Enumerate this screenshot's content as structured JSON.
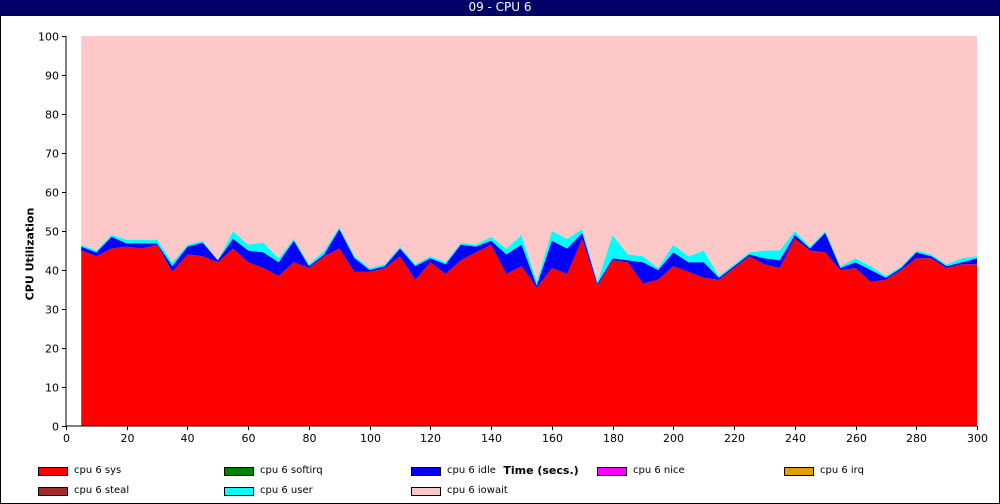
{
  "window": {
    "title": "09 - CPU 6"
  },
  "chart_data": {
    "type": "area",
    "stacked": true,
    "xlabel": "Time (secs.)",
    "ylabel": "CPU Utilization",
    "xlim": [
      0,
      300
    ],
    "ylim": [
      0,
      100
    ],
    "xticks": [
      0,
      20,
      40,
      60,
      80,
      100,
      120,
      140,
      160,
      180,
      200,
      220,
      240,
      260,
      280,
      300
    ],
    "yticks": [
      0,
      10,
      20,
      30,
      40,
      50,
      60,
      70,
      80,
      90,
      100
    ],
    "grid": false,
    "legend_position": "bottom",
    "x": [
      5,
      10,
      15,
      20,
      25,
      30,
      35,
      40,
      45,
      50,
      55,
      60,
      65,
      70,
      75,
      80,
      85,
      90,
      95,
      100,
      105,
      110,
      115,
      120,
      125,
      130,
      135,
      140,
      145,
      150,
      155,
      160,
      165,
      170,
      175,
      180,
      185,
      190,
      195,
      200,
      205,
      210,
      215,
      220,
      225,
      230,
      235,
      240,
      245,
      250,
      255,
      260,
      265,
      270,
      275,
      280,
      285,
      290,
      295,
      300
    ],
    "series": [
      {
        "name": "cpu 6 sys",
        "color": "#ff0000",
        "values": [
          45,
          43.5,
          45.5,
          46,
          45.5,
          46.5,
          39.5,
          44,
          43.5,
          42,
          45.5,
          42,
          40.5,
          38.5,
          42,
          40.5,
          43.5,
          45.5,
          39.5,
          39.5,
          40.5,
          43.5,
          37.5,
          42,
          39,
          42.5,
          44.5,
          46.5,
          39,
          41,
          35.5,
          40.5,
          39,
          48,
          36,
          42.5,
          42,
          36.5,
          37.5,
          41,
          39.5,
          38,
          37.5,
          40.5,
          43.5,
          41.5,
          40.5,
          48,
          45,
          44.5,
          40,
          40.5,
          37,
          37.5,
          40,
          43,
          43,
          40.5,
          41.5,
          41.5
        ]
      },
      {
        "name": "cpu 6 softirq",
        "color": "#008000",
        "values": [
          0,
          0,
          0,
          0,
          0,
          0,
          0,
          0,
          0,
          0,
          0,
          0,
          0,
          0,
          0,
          0,
          0,
          0,
          0,
          0,
          0,
          0,
          0,
          0,
          0,
          0,
          0,
          0,
          0,
          0,
          0,
          0,
          0,
          0,
          0,
          0,
          0,
          0,
          0,
          0,
          0,
          0,
          0,
          0,
          0,
          0,
          0,
          0,
          0,
          0,
          0,
          0,
          0,
          0,
          0,
          0,
          0,
          0,
          0,
          0
        ]
      },
      {
        "name": "cpu 6 idle",
        "color": "#0000ff",
        "values": [
          1,
          1,
          3,
          0.8,
          1.3,
          0.3,
          1.5,
          2,
          3.5,
          0.5,
          2.5,
          3,
          4,
          3.5,
          5.5,
          0.5,
          0.5,
          5,
          3.5,
          0.5,
          0.5,
          2,
          3.5,
          1,
          2.5,
          4,
          1.5,
          1,
          5,
          5.5,
          0.5,
          7,
          6.5,
          1.5,
          0.5,
          0.5,
          0.5,
          5.5,
          2.5,
          3.5,
          2.5,
          4,
          0.5,
          0.5,
          0.5,
          1.5,
          2,
          1,
          0.5,
          5,
          0.5,
          1.5,
          3,
          0.5,
          0.5,
          1.5,
          0.5,
          0.5,
          0.5,
          1.5
        ]
      },
      {
        "name": "cpu 6 nice",
        "color": "#ff00ff",
        "values": [
          0,
          0,
          0,
          0,
          0,
          0,
          0,
          0,
          0,
          0,
          0,
          0,
          0,
          0,
          0,
          0,
          0,
          0,
          0,
          0,
          0,
          0,
          0,
          0,
          0,
          0,
          0,
          0,
          0,
          0,
          0,
          0,
          0,
          0,
          0,
          0,
          0,
          0,
          0,
          0,
          0,
          0,
          0,
          0,
          0,
          0,
          0,
          0,
          0,
          0,
          0,
          0,
          0,
          0,
          0,
          0,
          0,
          0,
          0,
          0
        ]
      },
      {
        "name": "cpu 6 irq",
        "color": "#e0a000",
        "values": [
          0,
          0,
          0,
          0,
          0,
          0,
          0,
          0,
          0,
          0,
          0,
          0,
          0,
          0,
          0,
          0,
          0,
          0,
          0,
          0,
          0,
          0,
          0,
          0,
          0,
          0,
          0,
          0,
          0,
          0,
          0,
          0,
          0,
          0,
          0,
          0,
          0,
          0,
          0,
          0,
          0,
          0,
          0,
          0,
          0,
          0,
          0,
          0,
          0,
          0,
          0,
          0,
          0,
          0,
          0,
          0,
          0,
          0,
          0,
          0
        ]
      },
      {
        "name": "cpu 6 steal",
        "color": "#a52a2a",
        "values": [
          0,
          0,
          0,
          0,
          0,
          0,
          0,
          0,
          0,
          0,
          0,
          0,
          0,
          0,
          0,
          0,
          0,
          0,
          0,
          0,
          0,
          0,
          0,
          0,
          0,
          0,
          0,
          0,
          0,
          0,
          0,
          0,
          0,
          0,
          0,
          0,
          0,
          0,
          0,
          0,
          0,
          0,
          0,
          0,
          0,
          0,
          0,
          0,
          0,
          0,
          0,
          0,
          0,
          0,
          0,
          0,
          0,
          0,
          0,
          0
        ]
      },
      {
        "name": "cpu 6 user",
        "color": "#00ffff",
        "values": [
          0.5,
          0.5,
          0.5,
          1,
          1,
          1,
          1,
          0.5,
          0.5,
          0,
          2,
          1.5,
          2.5,
          1,
          0.5,
          0.5,
          1,
          0.5,
          0.5,
          0.5,
          0.5,
          0.5,
          0.5,
          0.5,
          0.5,
          0.5,
          0.5,
          1,
          1.5,
          2.5,
          1,
          2.5,
          2.5,
          1,
          0.5,
          6,
          1.5,
          1.5,
          0.5,
          2,
          1.5,
          3,
          0.5,
          0.5,
          0.5,
          2,
          2.5,
          1,
          0.5,
          0.5,
          0.5,
          1,
          1,
          0.5,
          0.5,
          0.5,
          0.5,
          0.5,
          1,
          0.5
        ]
      },
      {
        "name": "cpu 6 iowait",
        "color": "#ffc8c8",
        "values": [
          53.5,
          55,
          51,
          52.2,
          52.2,
          52.2,
          58,
          53.5,
          52.5,
          57.5,
          50,
          53.5,
          53,
          57,
          52,
          58.5,
          55,
          49,
          56.5,
          59.5,
          58.5,
          54,
          58.5,
          56.5,
          58,
          53,
          53.5,
          51.5,
          54.5,
          51,
          63,
          50,
          52,
          49.5,
          63,
          51,
          56,
          56.5,
          59.5,
          53.5,
          56.5,
          55,
          61.5,
          58.5,
          55.5,
          55,
          55,
          50,
          54,
          50,
          59,
          57,
          59,
          61.5,
          59,
          55,
          56,
          58.5,
          57,
          56.5
        ]
      }
    ]
  },
  "legend": {
    "items": [
      {
        "label": "cpu 6 sys",
        "color": "#ff0000"
      },
      {
        "label": "cpu 6 softirq",
        "color": "#008000"
      },
      {
        "label": "cpu 6 idle",
        "color": "#0000ff"
      },
      {
        "label": "cpu 6 nice",
        "color": "#ff00ff"
      },
      {
        "label": "cpu 6 irq",
        "color": "#e0a000"
      },
      {
        "label": "cpu 6 steal",
        "color": "#a52a2a"
      },
      {
        "label": "cpu 6 user",
        "color": "#00ffff"
      },
      {
        "label": "cpu 6 iowait",
        "color": "#ffc8c8"
      }
    ]
  }
}
